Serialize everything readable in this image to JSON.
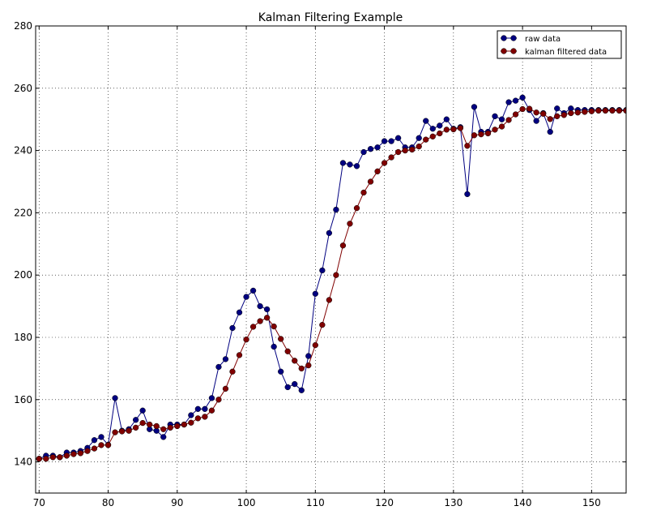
{
  "chart_data": {
    "type": "line",
    "title": "Kalman Filtering Example",
    "xlabel": "",
    "ylabel": "",
    "xlim": [
      69.5,
      155
    ],
    "ylim": [
      130,
      280
    ],
    "x_ticks": [
      70,
      80,
      90,
      100,
      110,
      120,
      130,
      140,
      150
    ],
    "y_ticks": [
      140,
      160,
      180,
      200,
      220,
      240,
      260,
      280
    ],
    "grid": true,
    "legend_position": "top-right",
    "x": [
      70,
      71,
      72,
      73,
      74,
      75,
      76,
      77,
      78,
      79,
      80,
      81,
      82,
      83,
      84,
      85,
      86,
      87,
      88,
      89,
      90,
      91,
      92,
      93,
      94,
      95,
      96,
      97,
      98,
      99,
      100,
      101,
      102,
      103,
      104,
      105,
      106,
      107,
      108,
      109,
      110,
      111,
      112,
      113,
      114,
      115,
      116,
      117,
      118,
      119,
      120,
      121,
      122,
      123,
      124,
      125,
      126,
      127,
      128,
      129,
      130,
      131,
      132,
      133,
      134,
      135,
      136,
      137,
      138,
      139,
      140,
      141,
      142,
      143,
      144,
      145,
      146,
      147,
      148,
      149,
      150,
      151,
      152,
      153,
      154,
      155
    ],
    "series": [
      {
        "name": "raw data",
        "color": "#000080",
        "values": [
          141,
          142,
          142,
          141.5,
          143,
          143,
          143.5,
          144.5,
          147,
          148,
          145.5,
          160.5,
          150,
          150.5,
          153.5,
          156.5,
          150.5,
          150,
          148,
          152,
          152,
          152,
          155,
          157,
          157,
          160.5,
          170.5,
          173,
          183,
          188,
          193,
          195,
          190,
          189,
          177,
          169,
          164,
          165,
          163,
          174,
          194,
          201.5,
          213.5,
          221,
          236,
          235.5,
          235,
          239.5,
          240.5,
          241,
          243,
          243,
          244,
          241,
          241,
          244,
          249.5,
          247,
          248,
          250,
          247,
          247.5,
          226,
          254,
          246,
          246,
          251,
          250,
          255.5,
          256,
          257,
          253,
          249.5,
          252,
          246,
          253.5,
          252,
          253.5,
          253,
          253,
          253,
          253,
          253,
          253,
          253,
          253
        ]
      },
      {
        "name": "kalman filtered data",
        "color": "#800000",
        "values": [
          141,
          141,
          141.5,
          141.5,
          142,
          142.5,
          142.8,
          143.5,
          144.3,
          145.4,
          145.4,
          149.5,
          149.8,
          150,
          151,
          152.5,
          152,
          151.5,
          150.5,
          151,
          151.5,
          152,
          152.6,
          154,
          154.5,
          156.5,
          160,
          163.5,
          169,
          174.3,
          179.3,
          183.4,
          185.2,
          186.3,
          183.5,
          179.5,
          175.5,
          172.5,
          170,
          171,
          177.5,
          184,
          192,
          200,
          209.5,
          216.5,
          221.5,
          226.5,
          230,
          233.3,
          236,
          237.8,
          239.5,
          240,
          240.3,
          241.3,
          243.5,
          244.5,
          245.5,
          246.7,
          246.8,
          247.2,
          241.5,
          244.9,
          245.2,
          245.5,
          246.7,
          247.7,
          249.8,
          251.6,
          253.3,
          253.4,
          252.2,
          251.8,
          250.1,
          251,
          251.4,
          252,
          252.2,
          252.4,
          252.6,
          252.8,
          252.8,
          252.8,
          252.8,
          252.8
        ]
      }
    ]
  }
}
